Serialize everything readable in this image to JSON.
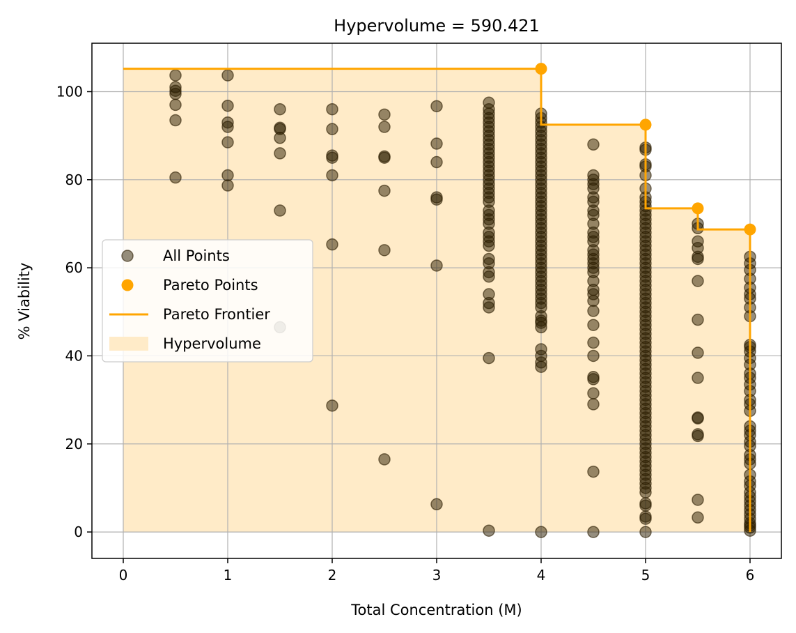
{
  "chart_data": {
    "type": "scatter",
    "title": "Hypervolume = 590.421",
    "xlabel": "Total Concentration (M)",
    "ylabel": "% Viability",
    "xlim": [
      -0.3,
      6.3
    ],
    "ylim": [
      -6,
      111
    ],
    "xticks": [
      0,
      1,
      2,
      3,
      4,
      5,
      6
    ],
    "yticks": [
      0,
      20,
      40,
      60,
      80,
      100
    ],
    "grid": true,
    "legend_position": "center-left",
    "colors": {
      "all_points": "#2b1d00",
      "pareto": "#ffa500",
      "hypervolume_fill": "#ffebc8"
    },
    "legend": [
      {
        "key": "all",
        "label": "All Points"
      },
      {
        "key": "pareto_points",
        "label": "Pareto Points"
      },
      {
        "key": "frontier",
        "label": "Pareto Frontier"
      },
      {
        "key": "hypervolume",
        "label": "Hypervolume"
      }
    ],
    "series": [
      {
        "name": "All Points",
        "points": [
          [
            0.5,
            103.7
          ],
          [
            0.5,
            101
          ],
          [
            0.5,
            100.2
          ],
          [
            0.5,
            99.5
          ],
          [
            0.5,
            97
          ],
          [
            0.5,
            93.5
          ],
          [
            0.5,
            80.5
          ],
          [
            1,
            103.7
          ],
          [
            1,
            96.8
          ],
          [
            1,
            93
          ],
          [
            1,
            92
          ],
          [
            1,
            88.5
          ],
          [
            1,
            81
          ],
          [
            1,
            78.7
          ],
          [
            1.5,
            96
          ],
          [
            1.5,
            91.8
          ],
          [
            1.5,
            91.5
          ],
          [
            1.5,
            89.5
          ],
          [
            1.5,
            86
          ],
          [
            1.5,
            73
          ],
          [
            1.5,
            46.5
          ],
          [
            2,
            96
          ],
          [
            2,
            91.5
          ],
          [
            2,
            85.5
          ],
          [
            2,
            85
          ],
          [
            2,
            81
          ],
          [
            2,
            65.3
          ],
          [
            2,
            28.7
          ],
          [
            2.5,
            94.8
          ],
          [
            2.5,
            92
          ],
          [
            2.5,
            85.3
          ],
          [
            2.5,
            85
          ],
          [
            2.5,
            77.5
          ],
          [
            2.5,
            64
          ],
          [
            2.5,
            16.5
          ],
          [
            3,
            96.7
          ],
          [
            3,
            88.2
          ],
          [
            3,
            84
          ],
          [
            3,
            76
          ],
          [
            3,
            75.5
          ],
          [
            3,
            60.5
          ],
          [
            3,
            6.3
          ],
          [
            3.5,
            97.5
          ],
          [
            3.5,
            96
          ],
          [
            3.5,
            95
          ],
          [
            3.5,
            94
          ],
          [
            3.5,
            93
          ],
          [
            3.5,
            92
          ],
          [
            3.5,
            91
          ],
          [
            3.5,
            90
          ],
          [
            3.5,
            89
          ],
          [
            3.5,
            88
          ],
          [
            3.5,
            87
          ],
          [
            3.5,
            86
          ],
          [
            3.5,
            85
          ],
          [
            3.5,
            84
          ],
          [
            3.5,
            83
          ],
          [
            3.5,
            82
          ],
          [
            3.5,
            81
          ],
          [
            3.5,
            80
          ],
          [
            3.5,
            79
          ],
          [
            3.5,
            78
          ],
          [
            3.5,
            77
          ],
          [
            3.5,
            76
          ],
          [
            3.5,
            75
          ],
          [
            3.5,
            73
          ],
          [
            3.5,
            72
          ],
          [
            3.5,
            71
          ],
          [
            3.5,
            70
          ],
          [
            3.5,
            68
          ],
          [
            3.5,
            67
          ],
          [
            3.5,
            66
          ],
          [
            3.5,
            65
          ],
          [
            3.5,
            62
          ],
          [
            3.5,
            61
          ],
          [
            3.5,
            59
          ],
          [
            3.5,
            58
          ],
          [
            3.5,
            54
          ],
          [
            3.5,
            52
          ],
          [
            3.5,
            51
          ],
          [
            3.5,
            39.5
          ],
          [
            3.5,
            0.3
          ],
          [
            4,
            95
          ],
          [
            4,
            94
          ],
          [
            4,
            93
          ],
          [
            4,
            92
          ],
          [
            4,
            91
          ],
          [
            4,
            90
          ],
          [
            4,
            89
          ],
          [
            4,
            88
          ],
          [
            4,
            87
          ],
          [
            4,
            86
          ],
          [
            4,
            85
          ],
          [
            4,
            84
          ],
          [
            4,
            83
          ],
          [
            4,
            82
          ],
          [
            4,
            81
          ],
          [
            4,
            80
          ],
          [
            4,
            79
          ],
          [
            4,
            78
          ],
          [
            4,
            77
          ],
          [
            4,
            76
          ],
          [
            4,
            75
          ],
          [
            4,
            74
          ],
          [
            4,
            73
          ],
          [
            4,
            72
          ],
          [
            4,
            71
          ],
          [
            4,
            70
          ],
          [
            4,
            69
          ],
          [
            4,
            68
          ],
          [
            4,
            67
          ],
          [
            4,
            66
          ],
          [
            4,
            65
          ],
          [
            4,
            64
          ],
          [
            4,
            63
          ],
          [
            4,
            62
          ],
          [
            4,
            61
          ],
          [
            4,
            60
          ],
          [
            4,
            59
          ],
          [
            4,
            58
          ],
          [
            4,
            57
          ],
          [
            4,
            56
          ],
          [
            4,
            55
          ],
          [
            4,
            54
          ],
          [
            4,
            53
          ],
          [
            4,
            52
          ],
          [
            4,
            51
          ],
          [
            4,
            49
          ],
          [
            4,
            48
          ],
          [
            4,
            47.5
          ],
          [
            4,
            46.5
          ],
          [
            4,
            41.5
          ],
          [
            4,
            40
          ],
          [
            4,
            38.5
          ],
          [
            4,
            37.5
          ],
          [
            4,
            0
          ],
          [
            4.5,
            88
          ],
          [
            4.5,
            81
          ],
          [
            4.5,
            80
          ],
          [
            4.5,
            79
          ],
          [
            4.5,
            78
          ],
          [
            4.5,
            76
          ],
          [
            4.5,
            75
          ],
          [
            4.5,
            73
          ],
          [
            4.5,
            72
          ],
          [
            4.5,
            70
          ],
          [
            4.5,
            68
          ],
          [
            4.5,
            67
          ],
          [
            4.5,
            66
          ],
          [
            4.5,
            64
          ],
          [
            4.5,
            63
          ],
          [
            4.5,
            62
          ],
          [
            4.5,
            61
          ],
          [
            4.5,
            60
          ],
          [
            4.5,
            59
          ],
          [
            4.5,
            57
          ],
          [
            4.5,
            55
          ],
          [
            4.5,
            54
          ],
          [
            4.5,
            52.5
          ],
          [
            4.5,
            50.2
          ],
          [
            4.5,
            47
          ],
          [
            4.5,
            43
          ],
          [
            4.5,
            40
          ],
          [
            4.5,
            35.2
          ],
          [
            4.5,
            34.7
          ],
          [
            4.5,
            31.5
          ],
          [
            4.5,
            29
          ],
          [
            4.5,
            13.7
          ],
          [
            4.5,
            0
          ],
          [
            5,
            87.3
          ],
          [
            5,
            86.8
          ],
          [
            5,
            83.5
          ],
          [
            5,
            83
          ],
          [
            5,
            81
          ],
          [
            5,
            78
          ],
          [
            5,
            76
          ],
          [
            5,
            75
          ],
          [
            5,
            74
          ],
          [
            5,
            73
          ],
          [
            5,
            72
          ],
          [
            5,
            71
          ],
          [
            5,
            70
          ],
          [
            5,
            69
          ],
          [
            5,
            68
          ],
          [
            5,
            67
          ],
          [
            5,
            66
          ],
          [
            5,
            65
          ],
          [
            5,
            64
          ],
          [
            5,
            63
          ],
          [
            5,
            62
          ],
          [
            5,
            61
          ],
          [
            5,
            60
          ],
          [
            5,
            59
          ],
          [
            5,
            58
          ],
          [
            5,
            57
          ],
          [
            5,
            56
          ],
          [
            5,
            55
          ],
          [
            5,
            54
          ],
          [
            5,
            53
          ],
          [
            5,
            52
          ],
          [
            5,
            51
          ],
          [
            5,
            50
          ],
          [
            5,
            49
          ],
          [
            5,
            48
          ],
          [
            5,
            47
          ],
          [
            5,
            46
          ],
          [
            5,
            45
          ],
          [
            5,
            44
          ],
          [
            5,
            43
          ],
          [
            5,
            42
          ],
          [
            5,
            41
          ],
          [
            5,
            40
          ],
          [
            5,
            39
          ],
          [
            5,
            38
          ],
          [
            5,
            37
          ],
          [
            5,
            36
          ],
          [
            5,
            35
          ],
          [
            5,
            34
          ],
          [
            5,
            33
          ],
          [
            5,
            32
          ],
          [
            5,
            31
          ],
          [
            5,
            30
          ],
          [
            5,
            29
          ],
          [
            5,
            28
          ],
          [
            5,
            27
          ],
          [
            5,
            26
          ],
          [
            5,
            25
          ],
          [
            5,
            24
          ],
          [
            5,
            23
          ],
          [
            5,
            22
          ],
          [
            5,
            21
          ],
          [
            5,
            20
          ],
          [
            5,
            19
          ],
          [
            5,
            18
          ],
          [
            5,
            17
          ],
          [
            5,
            16
          ],
          [
            5,
            15
          ],
          [
            5,
            14
          ],
          [
            5,
            13
          ],
          [
            5,
            12
          ],
          [
            5,
            11
          ],
          [
            5,
            10
          ],
          [
            5,
            9
          ],
          [
            5,
            6.5
          ],
          [
            5,
            6
          ],
          [
            5,
            3.5
          ],
          [
            5,
            3
          ],
          [
            5,
            0
          ],
          [
            5.5,
            70
          ],
          [
            5.5,
            69
          ],
          [
            5.5,
            66
          ],
          [
            5.5,
            64.5
          ],
          [
            5.5,
            62.5
          ],
          [
            5.5,
            62
          ],
          [
            5.5,
            57
          ],
          [
            5.5,
            48.2
          ],
          [
            5.5,
            40.7
          ],
          [
            5.5,
            35
          ],
          [
            5.5,
            26
          ],
          [
            5.5,
            25.8
          ],
          [
            5.5,
            22.2
          ],
          [
            5.5,
            21.8
          ],
          [
            5.5,
            7.3
          ],
          [
            5.5,
            3.3
          ],
          [
            6,
            62.5
          ],
          [
            6,
            61
          ],
          [
            6,
            59.5
          ],
          [
            6,
            57.5
          ],
          [
            6,
            55.5
          ],
          [
            6,
            54
          ],
          [
            6,
            53
          ],
          [
            6,
            51
          ],
          [
            6,
            49
          ],
          [
            6,
            42.5
          ],
          [
            6,
            42
          ],
          [
            6,
            41
          ],
          [
            6,
            39.5
          ],
          [
            6,
            38
          ],
          [
            6,
            36
          ],
          [
            6,
            35
          ],
          [
            6,
            33.5
          ],
          [
            6,
            32
          ],
          [
            6,
            30
          ],
          [
            6,
            29
          ],
          [
            6,
            27.5
          ],
          [
            6,
            24
          ],
          [
            6,
            23
          ],
          [
            6,
            22
          ],
          [
            6,
            20.5
          ],
          [
            6,
            19.5
          ],
          [
            6,
            17.5
          ],
          [
            6,
            16.5
          ],
          [
            6,
            15.5
          ],
          [
            6,
            13
          ],
          [
            6,
            11.5
          ],
          [
            6,
            10.5
          ],
          [
            6,
            9
          ],
          [
            6,
            8
          ],
          [
            6,
            7
          ],
          [
            6,
            6
          ],
          [
            6,
            5
          ],
          [
            6,
            4
          ],
          [
            6,
            3
          ],
          [
            6,
            2
          ],
          [
            6,
            1.5
          ],
          [
            6,
            1
          ],
          [
            6,
            0.3
          ]
        ]
      },
      {
        "name": "Pareto Points",
        "points": [
          [
            4,
            105.2
          ],
          [
            5,
            92.5
          ],
          [
            5.5,
            73.5
          ],
          [
            6,
            68.7
          ]
        ]
      }
    ],
    "frontier": [
      [
        0,
        105.2
      ],
      [
        4,
        105.2
      ],
      [
        4,
        92.5
      ],
      [
        5,
        92.5
      ],
      [
        5,
        73.5
      ],
      [
        5.5,
        73.5
      ],
      [
        5.5,
        68.7
      ],
      [
        6,
        68.7
      ],
      [
        6,
        0
      ]
    ]
  }
}
